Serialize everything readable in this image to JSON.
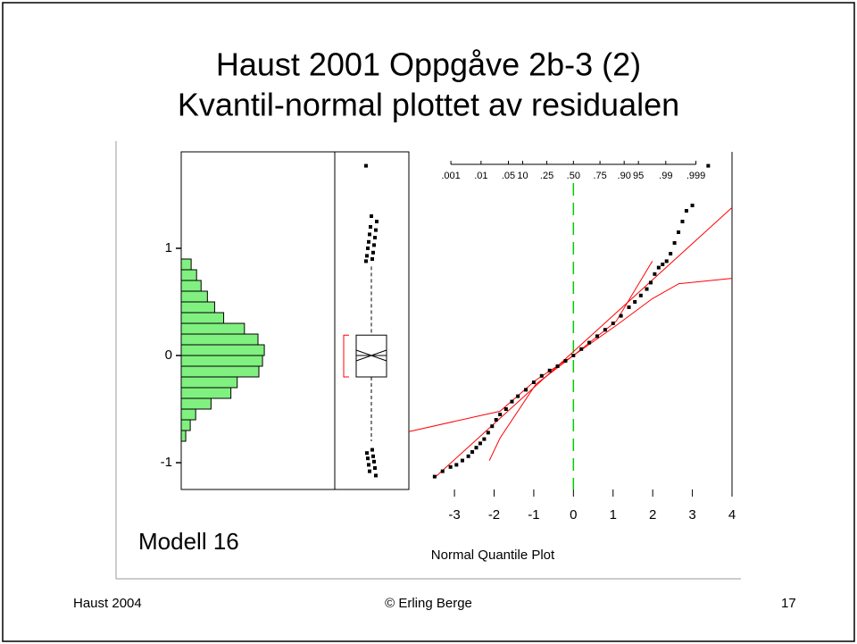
{
  "slide": {
    "title_lines": [
      "Haust 2001 Oppgåve 2b-3 (2)",
      "Kvantil-normal plottet av residualen"
    ],
    "caption": "Modell 16",
    "footer_left": "Haust 2004",
    "footer_center": "© Erling Berge",
    "page_number": "17"
  },
  "chart_data": [
    {
      "type": "histogram",
      "orientation": "horizontal",
      "bins": [
        -0.8,
        -0.7,
        -0.6,
        -0.5,
        -0.4,
        -0.3,
        -0.2,
        -0.1,
        0,
        0.1,
        0.2,
        0.3,
        0.4,
        0.5,
        0.6,
        0.7,
        0.8,
        0.9
      ],
      "values": [
        5,
        10,
        16,
        33,
        55,
        62,
        86,
        90,
        92,
        85,
        70,
        47,
        37,
        29,
        22,
        17,
        11
      ],
      "color": "#80f080",
      "xlim": [
        0,
        170
      ],
      "ylim": [
        -1.25,
        1.9
      ],
      "yticks": [
        -1,
        0,
        1
      ]
    },
    {
      "type": "box",
      "median": 0,
      "q1": -0.2,
      "q3": 0.19,
      "whisker_low": -0.8,
      "whisker_high": 0.83,
      "shortest_half": [
        -0.2,
        0.19
      ],
      "shortest_half_color": "#ff0000",
      "outliers": [
        0.88,
        0.9,
        0.93,
        0.96,
        1.0,
        1.03,
        1.06,
        1.1,
        1.13,
        1.17,
        1.2,
        1.25,
        1.3,
        1.77,
        -0.88,
        -0.91,
        -0.94,
        -0.96,
        -0.99,
        -1.02,
        -1.05,
        -1.08,
        -1.12
      ],
      "ylim": [
        -1.25,
        1.9
      ]
    },
    {
      "type": "scatter",
      "xlabel": "Normal Quantile Plot",
      "x": [
        -3.5,
        -3.3,
        -3.1,
        -2.95,
        -2.8,
        -2.65,
        -2.55,
        -2.45,
        -2.35,
        -2.25,
        -2.15,
        -2.05,
        -1.95,
        -1.85,
        -1.7,
        -1.55,
        -1.4,
        -1.2,
        -1.0,
        -0.8,
        -0.6,
        -0.4,
        -0.2,
        0,
        0.2,
        0.4,
        0.6,
        0.8,
        1.0,
        1.2,
        1.4,
        1.55,
        1.7,
        1.85,
        1.95,
        2.05,
        2.15,
        2.25,
        2.35,
        2.45,
        2.55,
        2.65,
        2.75,
        2.85,
        3.0,
        3.4
      ],
      "y": [
        -1.13,
        -1.08,
        -1.04,
        -1.02,
        -0.98,
        -0.94,
        -0.9,
        -0.86,
        -0.82,
        -0.78,
        -0.72,
        -0.66,
        -0.6,
        -0.55,
        -0.5,
        -0.43,
        -0.38,
        -0.32,
        -0.25,
        -0.19,
        -0.14,
        -0.1,
        -0.05,
        0,
        0.06,
        0.12,
        0.18,
        0.24,
        0.3,
        0.37,
        0.45,
        0.5,
        0.56,
        0.62,
        0.68,
        0.76,
        0.82,
        0.85,
        0.88,
        0.95,
        1.05,
        1.15,
        1.25,
        1.35,
        1.4,
        1.77
      ],
      "color": "#000000",
      "fit_line": {
        "x": [
          -3.5,
          4.0
        ],
        "y": [
          -1.14,
          1.38
        ],
        "color": "#ff0000"
      },
      "bands": [
        {
          "x": [
            -4.15,
            -1.85,
            -0.95,
            0,
            1.08,
            1.99,
            2.66,
            4.0
          ],
          "y": [
            -0.71,
            -0.52,
            -0.23,
            0,
            0.28,
            0.53,
            0.67,
            0.72
          ],
          "color": "#ff0000"
        },
        {
          "x": [
            -2.12,
            -1.85,
            -0.95,
            0,
            1.08,
            1.99
          ],
          "y": [
            -0.98,
            -0.77,
            -0.27,
            0,
            0.32,
            0.88
          ],
          "color": "#ff0000"
        }
      ],
      "reference_line_x": 0,
      "reference_color": "#00cc00",
      "xlim": [
        -4.15,
        4
      ],
      "ylim": [
        -1.25,
        1.9
      ],
      "xticks": [
        -3,
        -2,
        -1,
        0,
        1,
        2,
        3,
        4
      ],
      "prob_ticks": [
        {
          "value": -3.09,
          "label": ".001"
        },
        {
          "value": -2.33,
          "label": ".01"
        },
        {
          "value": -1.64,
          "label": ".05"
        },
        {
          "value": -1.28,
          "label": "10"
        },
        {
          "value": -0.67,
          "label": ".25"
        },
        {
          "value": 0,
          "label": ".50"
        },
        {
          "value": 0.67,
          "label": ".75"
        },
        {
          "value": 1.28,
          "label": ".90"
        },
        {
          "value": 1.64,
          "label": "95"
        },
        {
          "value": 2.33,
          "label": ".99"
        },
        {
          "value": 3.09,
          "label": ".999"
        }
      ]
    }
  ]
}
